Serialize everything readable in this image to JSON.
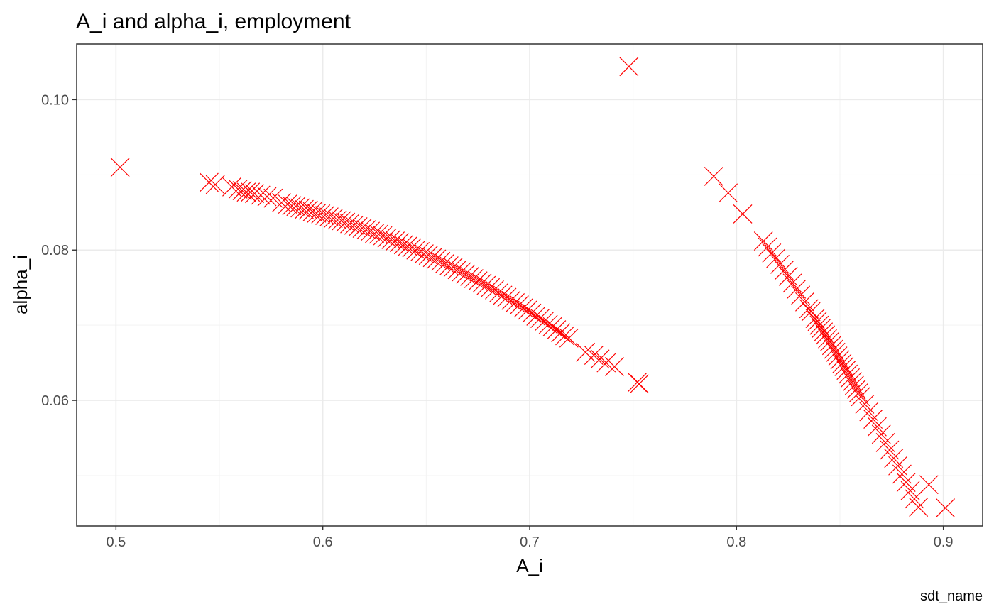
{
  "chart_data": {
    "type": "scatter",
    "title": "A_i and alpha_i, employment",
    "xlabel": "A_i",
    "ylabel": "alpha_i",
    "caption": "sdt_name",
    "marker": "x",
    "color": "#ff0000",
    "grid": true,
    "xlim": [
      0.481,
      0.919
    ],
    "ylim": [
      0.0433,
      0.1074
    ],
    "x_ticks": [
      {
        "value": 0.5,
        "label": "0.5"
      },
      {
        "value": 0.6,
        "label": "0.6"
      },
      {
        "value": 0.7,
        "label": "0.7"
      },
      {
        "value": 0.8,
        "label": "0.8"
      },
      {
        "value": 0.9,
        "label": "0.9"
      }
    ],
    "y_ticks": [
      {
        "value": 0.06,
        "label": "0.06"
      },
      {
        "value": 0.08,
        "label": "0.08"
      },
      {
        "value": 0.1,
        "label": "0.10"
      }
    ],
    "outliers": [
      {
        "x": 0.502,
        "y": 0.091
      },
      {
        "x": 0.748,
        "y": 0.1044
      },
      {
        "x": 0.789,
        "y": 0.0898
      },
      {
        "x": 0.796,
        "y": 0.0876
      },
      {
        "x": 0.803,
        "y": 0.0848
      },
      {
        "x": 0.545,
        "y": 0.089
      },
      {
        "x": 0.548,
        "y": 0.0887
      },
      {
        "x": 0.753,
        "y": 0.0622
      },
      {
        "x": 0.752,
        "y": 0.0624
      },
      {
        "x": 0.901,
        "y": 0.0457
      },
      {
        "x": 0.893,
        "y": 0.0488
      }
    ],
    "series": [
      {
        "cluster": "left",
        "x": [
          0.556,
          0.559,
          0.561,
          0.563,
          0.565,
          0.567,
          0.57,
          0.573,
          0.576,
          0.58,
          0.583,
          0.585,
          0.587,
          0.589,
          0.591,
          0.593,
          0.595,
          0.597,
          0.599,
          0.601,
          0.603,
          0.605,
          0.607,
          0.609,
          0.611,
          0.613,
          0.615,
          0.617,
          0.619,
          0.621,
          0.623,
          0.625,
          0.627,
          0.629,
          0.631,
          0.633,
          0.635,
          0.637,
          0.639,
          0.641,
          0.643,
          0.645,
          0.647,
          0.649,
          0.651,
          0.653,
          0.655,
          0.657,
          0.659,
          0.661,
          0.663,
          0.665,
          0.667,
          0.669,
          0.671,
          0.673,
          0.675,
          0.677,
          0.679,
          0.681,
          0.683,
          0.685,
          0.687,
          0.689,
          0.691,
          0.693,
          0.695,
          0.697,
          0.699,
          0.701,
          0.703,
          0.705,
          0.707,
          0.709,
          0.711,
          0.713,
          0.715,
          0.717,
          0.719,
          0.727,
          0.731,
          0.734,
          0.737,
          0.741
        ],
        "y": [
          0.0884,
          0.0881,
          0.0879,
          0.0877,
          0.0877,
          0.0875,
          0.0873,
          0.0871,
          0.0869,
          0.0863,
          0.0861,
          0.0859,
          0.0858,
          0.0856,
          0.0854,
          0.0853,
          0.0851,
          0.0849,
          0.0848,
          0.0846,
          0.0844,
          0.0842,
          0.084,
          0.0839,
          0.0837,
          0.0835,
          0.0833,
          0.0831,
          0.0829,
          0.0827,
          0.0825,
          0.0822,
          0.0821,
          0.0819,
          0.0816,
          0.0814,
          0.0812,
          0.081,
          0.0807,
          0.0805,
          0.0803,
          0.08,
          0.0798,
          0.0795,
          0.0793,
          0.079,
          0.0788,
          0.0785,
          0.0782,
          0.0779,
          0.0777,
          0.0774,
          0.0771,
          0.0768,
          0.0765,
          0.0762,
          0.0759,
          0.0756,
          0.0753,
          0.075,
          0.0747,
          0.0743,
          0.074,
          0.0737,
          0.0733,
          0.073,
          0.0727,
          0.0723,
          0.072,
          0.0716,
          0.0712,
          0.0709,
          0.0705,
          0.0701,
          0.0698,
          0.0694,
          0.069,
          0.0686,
          0.0683,
          0.0664,
          0.066,
          0.0655,
          0.065,
          0.0645
        ]
      },
      {
        "cluster": "right",
        "x": [
          0.813,
          0.815,
          0.817,
          0.819,
          0.821,
          0.823,
          0.825,
          0.827,
          0.829,
          0.831,
          0.833,
          0.835,
          0.836,
          0.838,
          0.839,
          0.84,
          0.841,
          0.842,
          0.843,
          0.844,
          0.845,
          0.846,
          0.847,
          0.848,
          0.849,
          0.85,
          0.851,
          0.852,
          0.853,
          0.854,
          0.855,
          0.856,
          0.857,
          0.858,
          0.859,
          0.86,
          0.862,
          0.864,
          0.866,
          0.868,
          0.87,
          0.872,
          0.874,
          0.876,
          0.878,
          0.88,
          0.882,
          0.884,
          0.886,
          0.888
        ],
        "y": [
          0.0812,
          0.0804,
          0.0796,
          0.0789,
          0.0781,
          0.0773,
          0.0765,
          0.0756,
          0.0748,
          0.074,
          0.0731,
          0.0722,
          0.0718,
          0.0709,
          0.0705,
          0.07,
          0.0696,
          0.0691,
          0.0687,
          0.0682,
          0.0678,
          0.0673,
          0.0668,
          0.0664,
          0.0659,
          0.0654,
          0.0649,
          0.0645,
          0.064,
          0.0635,
          0.063,
          0.0625,
          0.062,
          0.0615,
          0.061,
          0.0605,
          0.0595,
          0.0585,
          0.0575,
          0.0565,
          0.0555,
          0.0544,
          0.0534,
          0.0523,
          0.0513,
          0.0502,
          0.0491,
          0.048,
          0.0469,
          0.0458
        ]
      }
    ]
  }
}
